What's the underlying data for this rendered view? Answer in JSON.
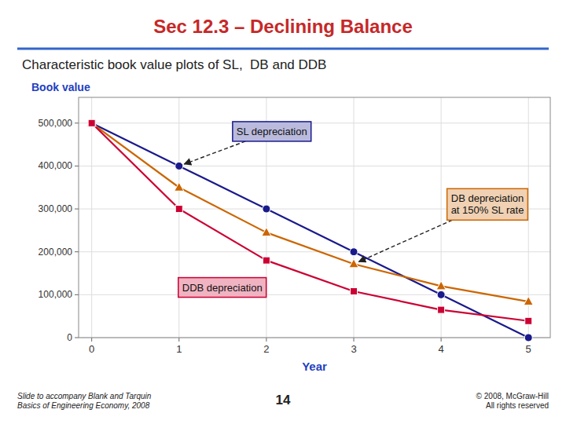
{
  "chart_data": {
    "type": "line",
    "title": "Sec 12.3 – Declining Balance",
    "subtitle": "Characteristic book value plots of SL,  DB and DDB",
    "x": [
      0,
      1,
      2,
      3,
      4,
      5
    ],
    "xlabel": "Year",
    "ylabel": "Book value",
    "xlim": [
      -0.15,
      5.25
    ],
    "xticks": [
      0,
      1,
      2,
      3,
      4,
      5
    ],
    "ylim": [
      0,
      560000
    ],
    "yticks": [
      0,
      {
        "value": 100000,
        "label": "100,000"
      },
      {
        "value": 200000,
        "label": "200,000"
      },
      {
        "value": 300000,
        "label": "300,000"
      },
      {
        "value": 400000,
        "label": "400,000"
      },
      {
        "value": 500000,
        "label": "500,000"
      }
    ],
    "grid": true,
    "series": [
      {
        "name": "SL depreciation",
        "color": "#1a1a8c",
        "marker": "circle",
        "values": [
          500000,
          400000,
          300000,
          200000,
          100000,
          0
        ]
      },
      {
        "name": "DB depreciation\nat 150% SL rate",
        "color": "#cc6600",
        "marker": "triangle",
        "values": [
          500000,
          350000,
          245000,
          171500,
          120050,
          84035
        ]
      },
      {
        "name": "DDB depreciation",
        "color": "#cc0033",
        "marker": "square",
        "values": [
          500000,
          300000,
          180000,
          108000,
          64800,
          38880
        ]
      }
    ],
    "annotations": [
      "Slide to accompany Blank and Tarquin\nBasics of Engineering Economy, 2008",
      "14",
      "© 2008, McGraw-Hill\nAll rights reserved"
    ]
  }
}
